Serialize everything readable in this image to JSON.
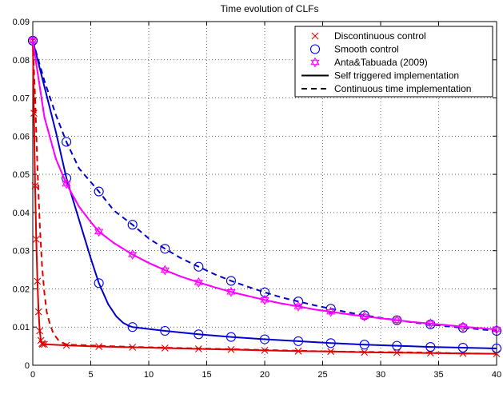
{
  "chart_data": {
    "type": "line",
    "title": "Time evolution of CLFs",
    "xlabel": "",
    "ylabel": "",
    "xlim": [
      0,
      40
    ],
    "ylim": [
      0,
      0.09
    ],
    "xticks": [
      0,
      5,
      10,
      15,
      20,
      25,
      30,
      35,
      40
    ],
    "yticks": [
      0,
      0.01,
      0.02,
      0.03,
      0.04,
      0.05,
      0.06,
      0.07,
      0.08,
      0.09
    ],
    "xtick_labels": [
      "0",
      "5",
      "10",
      "15",
      "20",
      "25",
      "30",
      "35",
      "40"
    ],
    "ytick_labels": [
      "0",
      "0.01",
      "0.02",
      "0.03",
      "0.04",
      "0.05",
      "0.06",
      "0.07",
      "0.08",
      "0.09"
    ],
    "grid": true,
    "legend_position": "top-right",
    "legend": [
      {
        "label": "Discontinuous control",
        "marker": "x",
        "color": "#ff0000",
        "line": "none"
      },
      {
        "label": "Smooth control",
        "marker": "circle",
        "color": "#0000ff",
        "line": "none"
      },
      {
        "label": "Anta&Tabuada (2009)",
        "marker": "hexagram",
        "color": "#ff00ff",
        "line": "none"
      },
      {
        "label": "Self triggered implementation",
        "marker": "none",
        "color": "#000000",
        "line": "solid"
      },
      {
        "label": "Continuous time implementation",
        "marker": "none",
        "color": "#000000",
        "line": "dashed"
      }
    ],
    "series": [
      {
        "group": "Discontinuous control",
        "style": "solid",
        "color": "#dd0000",
        "marker": "x",
        "x": [
          0,
          0.1,
          0.2,
          0.3,
          0.4,
          0.5,
          0.6,
          0.7,
          0.8,
          0.85,
          1,
          2.9,
          5.7,
          8.6,
          11.4,
          14.3,
          17.1,
          20,
          22.9,
          25.7,
          28.6,
          31.4,
          34.3,
          37.1,
          40
        ],
        "y": [
          0.085,
          0.066,
          0.047,
          0.033,
          0.022,
          0.014,
          0.009,
          0.0065,
          0.0057,
          0.0055,
          0.0055,
          0.0052,
          0.0049,
          0.0047,
          0.0045,
          0.0043,
          0.0041,
          0.0039,
          0.0037,
          0.0036,
          0.0034,
          0.0033,
          0.0032,
          0.0031,
          0.003
        ]
      },
      {
        "group": "Discontinuous control",
        "style": "dashed",
        "color": "#dd0000",
        "marker": "none",
        "x": [
          0,
          0.2,
          0.4,
          0.6,
          0.8,
          1.0,
          1.2,
          1.5,
          1.8,
          2.2,
          2.6,
          3,
          5.7,
          8.6,
          11.4,
          14.3,
          17.1,
          20,
          22.9,
          25.7,
          28.6,
          31.4,
          34.3,
          37.1,
          40
        ],
        "y": [
          0.085,
          0.07,
          0.052,
          0.037,
          0.026,
          0.019,
          0.014,
          0.0105,
          0.0082,
          0.0066,
          0.0058,
          0.0054,
          0.0051,
          0.0048,
          0.0046,
          0.0044,
          0.0042,
          0.004,
          0.0038,
          0.0036,
          0.0035,
          0.0034,
          0.0033,
          0.0031,
          0.003
        ]
      },
      {
        "group": "Smooth control",
        "style": "solid",
        "color": "#0000cc",
        "marker": "none",
        "x": [
          0,
          1,
          2,
          2.9,
          4,
          5,
          5.7,
          6.5,
          7.2,
          7.8,
          8.3,
          8.6,
          11.4,
          14.3,
          17.1,
          20,
          22.9,
          25.7,
          28.6,
          31.4,
          34.3,
          37.1,
          40
        ],
        "y": [
          0.085,
          0.073,
          0.061,
          0.049,
          0.038,
          0.028,
          0.0215,
          0.016,
          0.0128,
          0.0111,
          0.0103,
          0.01,
          0.009,
          0.0081,
          0.0074,
          0.0068,
          0.0063,
          0.0058,
          0.0054,
          0.0051,
          0.0048,
          0.0046,
          0.0044
        ]
      },
      {
        "group": "Smooth control",
        "style": "markers",
        "color": "#0000ff",
        "marker": "circle",
        "x": [
          0,
          2.9,
          5.7,
          8.6,
          11.4,
          14.3,
          17.1,
          20,
          22.9,
          25.7,
          28.6,
          31.4,
          34.3,
          37.1,
          40
        ],
        "y": [
          0.085,
          0.049,
          0.0215,
          0.01,
          0.009,
          0.0081,
          0.0074,
          0.0068,
          0.0063,
          0.0058,
          0.0054,
          0.0051,
          0.0048,
          0.0046,
          0.0044
        ]
      },
      {
        "group": "Smooth control",
        "style": "dashed",
        "color": "#0000cc",
        "marker": "circle",
        "x": [
          0,
          1,
          2,
          2.9,
          4,
          5.7,
          7,
          8.6,
          10,
          11.4,
          12.8,
          14.3,
          15.7,
          17.1,
          18.6,
          20,
          21.4,
          22.9,
          24.3,
          25.7,
          27.1,
          28.6,
          30,
          31.4,
          32.8,
          34.3,
          35.7,
          37.1,
          38.6,
          40
        ],
        "y": [
          0.085,
          0.0745,
          0.0655,
          0.0585,
          0.0515,
          0.0455,
          0.0405,
          0.0368,
          0.0332,
          0.0305,
          0.028,
          0.0258,
          0.0238,
          0.0221,
          0.0205,
          0.0191,
          0.0178,
          0.0167,
          0.0157,
          0.0148,
          0.0139,
          0.0131,
          0.0124,
          0.0118,
          0.0112,
          0.0107,
          0.0102,
          0.0098,
          0.0094,
          0.009
        ],
        "marker_x": [
          0,
          2.9,
          5.7,
          8.6,
          11.4,
          14.3,
          17.1,
          20,
          22.9,
          25.7,
          28.6,
          31.4,
          34.3,
          37.1,
          40
        ],
        "marker_y": [
          0.085,
          0.0585,
          0.0455,
          0.0368,
          0.0305,
          0.0258,
          0.0221,
          0.0191,
          0.0167,
          0.0148,
          0.0131,
          0.0118,
          0.0107,
          0.0098,
          0.009
        ]
      },
      {
        "group": "Anta&Tabuada (2009)",
        "style": "solid+dashed",
        "color": "#ff00ff",
        "marker": "hexagram",
        "x": [
          0,
          1,
          2,
          2.9,
          4,
          5,
          5.7,
          7,
          8.6,
          10,
          11.4,
          12.8,
          14.3,
          15.7,
          17.1,
          18.6,
          20,
          21.4,
          22.9,
          24.3,
          25.7,
          27.1,
          28.6,
          30,
          31.4,
          32.8,
          34.3,
          35.7,
          37.1,
          38.6,
          40
        ],
        "y": [
          0.085,
          0.065,
          0.054,
          0.0475,
          0.0415,
          0.0375,
          0.035,
          0.032,
          0.029,
          0.0268,
          0.0249,
          0.0232,
          0.0217,
          0.0204,
          0.0192,
          0.0181,
          0.0171,
          0.0162,
          0.0154,
          0.0146,
          0.014,
          0.0134,
          0.0128,
          0.0123,
          0.0118,
          0.0113,
          0.0109,
          0.0105,
          0.0101,
          0.0097,
          0.0094
        ],
        "marker_x": [
          0,
          2.9,
          5.7,
          8.6,
          11.4,
          14.3,
          17.1,
          20,
          22.9,
          25.7,
          28.6,
          31.4,
          34.3,
          37.1,
          40
        ],
        "marker_y": [
          0.085,
          0.0475,
          0.035,
          0.029,
          0.0249,
          0.0217,
          0.0192,
          0.0171,
          0.0154,
          0.014,
          0.0128,
          0.0118,
          0.0109,
          0.0101,
          0.0094
        ]
      }
    ]
  }
}
